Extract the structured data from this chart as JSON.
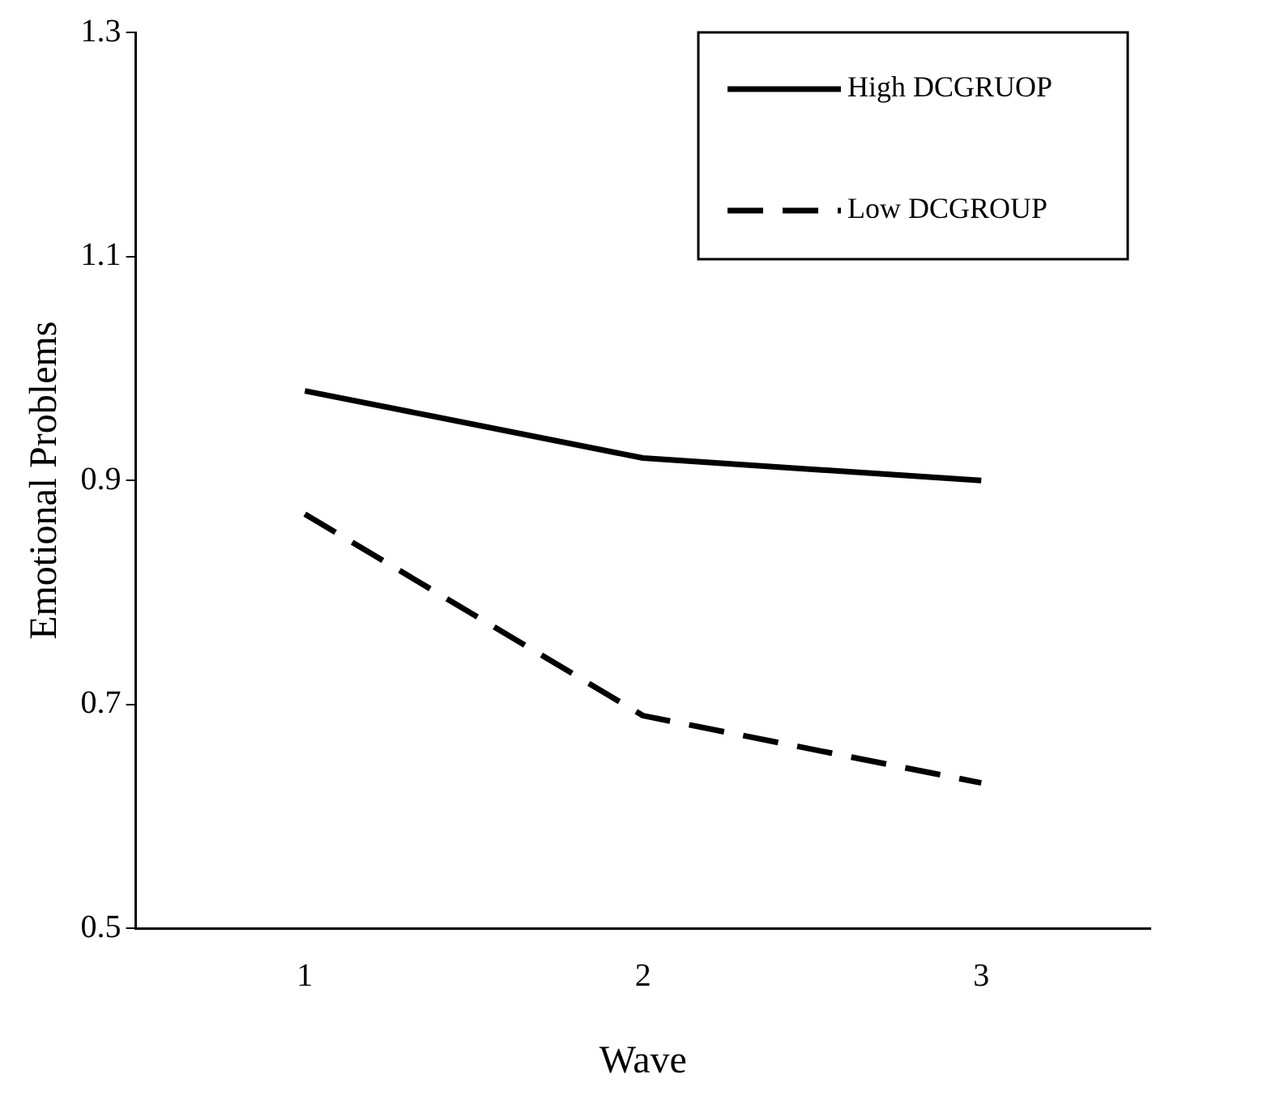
{
  "chart_data": {
    "type": "line",
    "xlabel": "Wave",
    "ylabel": "Emotional Problems",
    "categories": [
      "1",
      "2",
      "3"
    ],
    "series": [
      {
        "name": "High DCGRUOP",
        "color": "#000000",
        "values": [
          0.98,
          0.92,
          0.9
        ],
        "line_style": "solid"
      },
      {
        "name": "Low DCGROUP",
        "color": "#000000",
        "values": [
          0.87,
          0.69,
          0.63
        ],
        "line_style": "dashed"
      }
    ],
    "ylim": [
      0.5,
      1.3
    ],
    "yticks": [
      0.5,
      0.7,
      0.9,
      1.1,
      1.3
    ],
    "grid": false,
    "legend": "top right",
    "marker": "none"
  }
}
